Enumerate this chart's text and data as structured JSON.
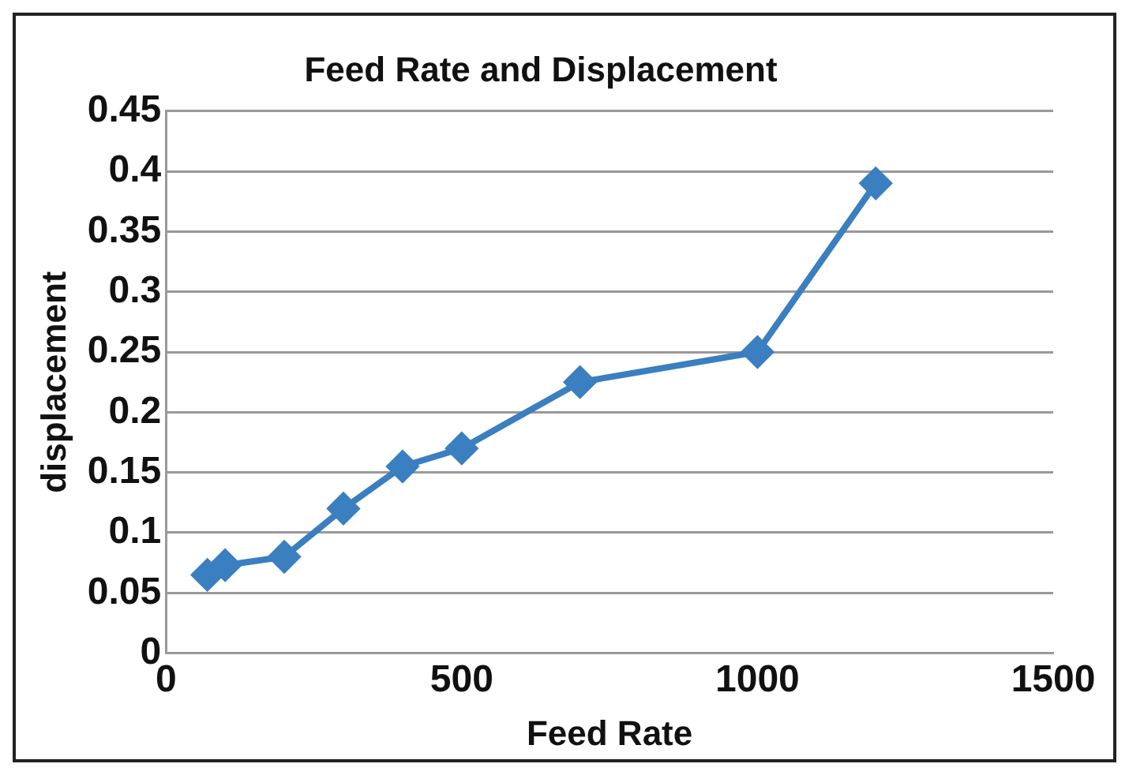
{
  "chart_data": {
    "type": "line",
    "title": "Feed Rate and Displacement",
    "xlabel": "Feed Rate",
    "ylabel": "displacement",
    "x": [
      70,
      100,
      200,
      300,
      400,
      500,
      700,
      1000,
      1200
    ],
    "series": [
      {
        "color": "#3a7fc0",
        "values": [
          0.065,
          0.073,
          0.08,
          0.12,
          0.155,
          0.17,
          0.225,
          0.25,
          0.39
        ]
      }
    ],
    "xlim": [
      0,
      1500
    ],
    "xticks": [
      0,
      500,
      1000,
      1500
    ],
    "ylim": [
      0,
      0.45
    ],
    "yticks": [
      0,
      0.05,
      0.1,
      0.15,
      0.2,
      0.25,
      0.3,
      0.35,
      0.4,
      0.45
    ],
    "grid": "y",
    "legend": false,
    "marker": "diamond",
    "line_style": "solid"
  }
}
